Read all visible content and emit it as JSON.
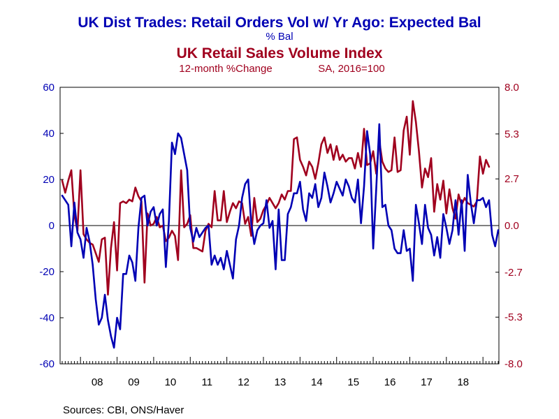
{
  "chart_data": {
    "type": "line",
    "title_primary": "UK Dist Trades: Retail Orders Vol w/ Yr Ago: Expected Bal",
    "subtitle_primary": "% Bal",
    "title_secondary": "UK Retail Sales Volume Index",
    "subtitle_secondary_left": "12-month %Change",
    "subtitle_secondary_right": "SA, 2016=100",
    "source": "Sources:  CBI, ONS/Haver",
    "colors": {
      "primary": "#0000b4",
      "secondary": "#a0001e",
      "axis": "#000000"
    },
    "x_axis": {
      "start": "2007-07",
      "end": "2018-10",
      "year_labels": [
        "08",
        "09",
        "10",
        "11",
        "12",
        "13",
        "14",
        "15",
        "16",
        "17",
        "18"
      ]
    },
    "y_left": {
      "range": [
        -60,
        60
      ],
      "ticks": [
        60,
        40,
        20,
        0,
        -20,
        -40,
        -60
      ],
      "tick_labels": [
        "60",
        "40",
        "20",
        "0",
        "-20",
        "-40",
        "-60"
      ]
    },
    "y_right": {
      "range": [
        -8.0,
        8.0
      ],
      "ticks": [
        8.0,
        5.3,
        2.7,
        0.0,
        -2.7,
        -5.3,
        -8.0
      ],
      "tick_labels": [
        "8.0",
        "5.3",
        "2.7",
        "0.0",
        "-2.7",
        "-5.3",
        "-8.0"
      ]
    },
    "zero_line": true,
    "series": [
      {
        "name": "UK Dist Trades: Retail Orders Vol w/ Yr Ago: Expected Bal",
        "axis": "left",
        "color": "#0000b4",
        "values": [
          13,
          11,
          9,
          -9,
          10,
          -3,
          -6,
          -14,
          -1,
          -7,
          -17,
          -32,
          -43,
          -40,
          -30,
          -41,
          -48,
          -53,
          -40,
          -45,
          -21,
          -21,
          -13,
          -16,
          -24,
          -1,
          12,
          13,
          0,
          6,
          8,
          0,
          5,
          7,
          -18,
          2,
          36,
          31,
          40,
          38,
          31,
          24,
          -1,
          -7,
          -1,
          -5,
          -3,
          -1,
          0,
          -17,
          -13,
          -17,
          -14,
          -19,
          -11,
          -17,
          -23,
          -6,
          0,
          12,
          18,
          20,
          1,
          -8,
          -2,
          0,
          1,
          11,
          -1,
          2,
          -19,
          7,
          -15,
          -15,
          5,
          8,
          14,
          14,
          19,
          7,
          2,
          14,
          12,
          18,
          8,
          12,
          23,
          17,
          10,
          14,
          19,
          16,
          13,
          20,
          17,
          12,
          10,
          20,
          1,
          17,
          41,
          31,
          -10,
          16,
          44,
          8,
          9,
          0,
          -2,
          -10,
          -12,
          -12,
          -2,
          -11,
          -10,
          -24,
          9,
          1,
          -8,
          9,
          -1,
          -4,
          -13,
          -5,
          -14,
          5,
          -1,
          -8,
          -2,
          11,
          -4,
          11,
          -11,
          22,
          10,
          1,
          11,
          11,
          12,
          8,
          11,
          -4,
          -9,
          -2
        ]
      },
      {
        "name": "UK Retail Sales Volume Index",
        "axis": "right",
        "color": "#a0001e",
        "values": [
          2.6,
          1.9,
          2.6,
          3.2,
          0.6,
          -0.3,
          3.2,
          -0.5,
          -0.8,
          -1.0,
          -1.1,
          -1.6,
          -2.1,
          -0.8,
          -0.7,
          -4.0,
          -1.3,
          0.2,
          -2.6,
          1.3,
          1.4,
          1.3,
          1.5,
          1.4,
          2.2,
          1.7,
          1.4,
          -3.3,
          0.7,
          0.0,
          0.1,
          0.5,
          -0.1,
          0.0,
          -0.9,
          -0.7,
          -0.3,
          -0.6,
          -2.0,
          3.2,
          -0.1,
          0.1,
          0.6,
          -1.3,
          -1.3,
          -1.4,
          -1.5,
          -0.3,
          0.1,
          -0.1,
          2.0,
          0.3,
          0.3,
          2.0,
          0.2,
          0.8,
          1.3,
          1.0,
          1.4,
          1.3,
          0.1,
          0.5,
          -0.6,
          1.6,
          0.2,
          0.4,
          0.9,
          1.2,
          1.6,
          1.3,
          1.0,
          1.3,
          1.8,
          1.5,
          2.0,
          2.0,
          5.0,
          5.1,
          3.8,
          3.4,
          2.9,
          3.7,
          3.4,
          2.7,
          3.6,
          4.7,
          5.1,
          4.2,
          4.7,
          3.8,
          4.6,
          3.8,
          4.1,
          3.7,
          3.9,
          3.9,
          3.3,
          4.2,
          3.4,
          5.6,
          3.5,
          3.6,
          4.3,
          3.0,
          4.9,
          3.7,
          3.3,
          3.1,
          3.2,
          5.1,
          3.1,
          3.2,
          5.5,
          6.3,
          4.1,
          7.2,
          6.0,
          4.3,
          2.2,
          3.3,
          2.8,
          3.9,
          0.8,
          2.4,
          1.5,
          2.6,
          0.7,
          2.1,
          1.0,
          0.4,
          1.8,
          1.2,
          1.6,
          1.3,
          1.2,
          1.1,
          1.4,
          4.0,
          3.0,
          3.8,
          3.4
        ]
      }
    ]
  }
}
